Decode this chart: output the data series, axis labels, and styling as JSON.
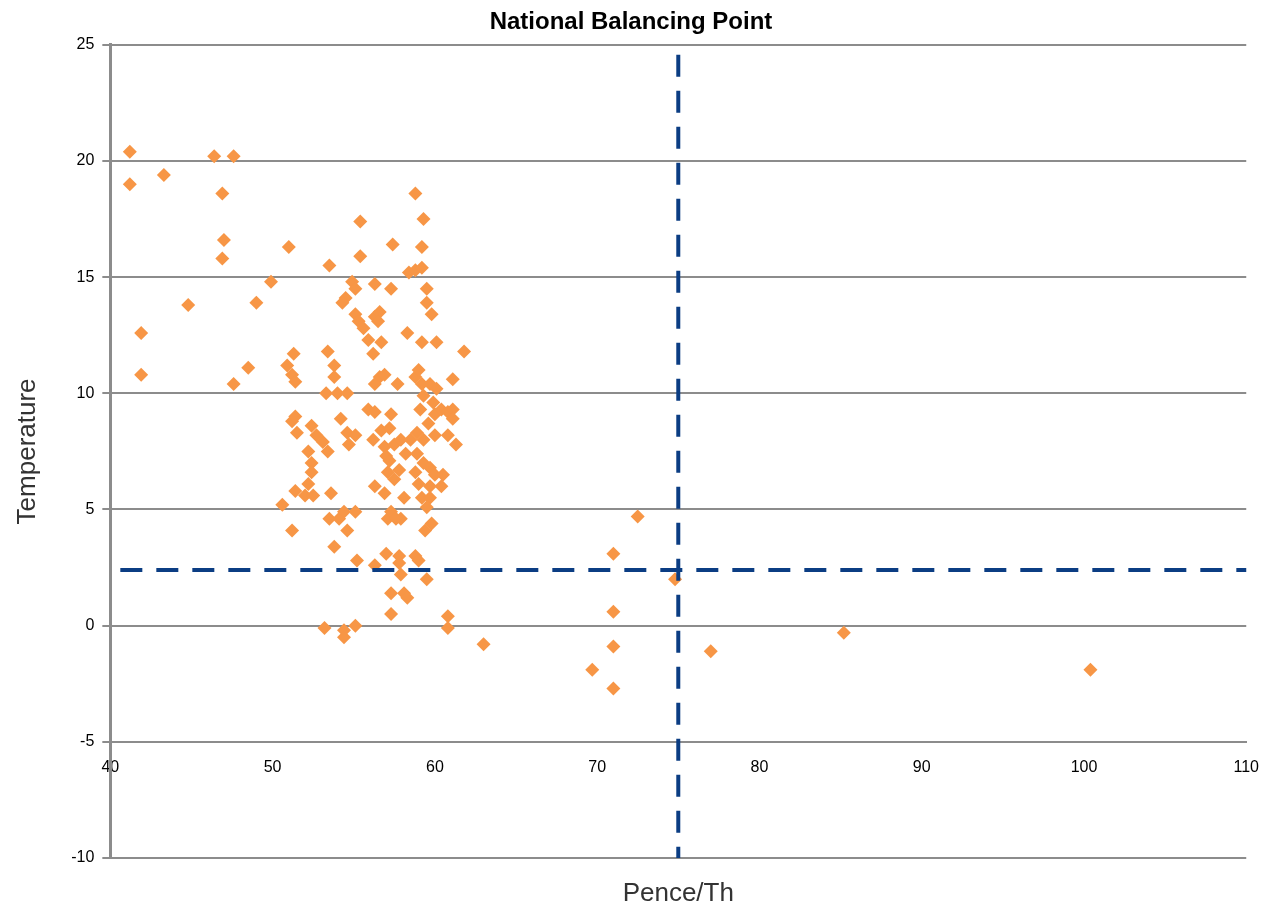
{
  "chart_data": {
    "type": "scatter",
    "title": "National Balancing Point",
    "xlabel": "Pence/Th",
    "ylabel": "Temperature",
    "xlim": [
      40,
      110
    ],
    "xticks": [
      40,
      50,
      60,
      70,
      80,
      90,
      100,
      110
    ],
    "ylim": [
      -10,
      25
    ],
    "yticks": [
      -10,
      -5,
      0,
      5,
      10,
      15,
      20,
      25
    ],
    "grid": "y",
    "legend": false,
    "marker": "diamond",
    "ref_lines": [
      {
        "axis": "x",
        "value": 75,
        "color": "#0b3d83",
        "line_style": "dashed"
      },
      {
        "axis": "y",
        "value": 2.4,
        "color": "#0b3d83",
        "line_style": "dashed"
      }
    ],
    "series": [
      {
        "color": "#f79646",
        "x": [
          41.2,
          41.2,
          43.3,
          46.4,
          47.6,
          46.9,
          47.0,
          46.9,
          44.8,
          41.9,
          41.9,
          47.6,
          48.5,
          49.0,
          49.9,
          51.0,
          50.9,
          51.3,
          51.2,
          51.4,
          51.2,
          51.4,
          51.5,
          50.6,
          51.4,
          51.2,
          53.5,
          53.4,
          53.8,
          53.8,
          53.3,
          54.0,
          54.6,
          54.2,
          52.4,
          52.7,
          53.1,
          53.4,
          52.2,
          52.4,
          52.4,
          52.2,
          52.0,
          52.5,
          53.6,
          53.5,
          53.8,
          54.1,
          54.6,
          54.4,
          55.1,
          54.6,
          54.7,
          55.1,
          53.2,
          54.4,
          54.4,
          55.1,
          55.2,
          55.4,
          55.4,
          54.9,
          55.1,
          54.5,
          54.3,
          55.1,
          55.3,
          55.6,
          55.9,
          56.3,
          56.3,
          56.6,
          56.5,
          56.7,
          56.2,
          56.6,
          56.9,
          56.3,
          55.9,
          56.3,
          56.2,
          56.7,
          56.9,
          57.0,
          57.2,
          57.3,
          57.2,
          57.5,
          57.5,
          57.1,
          56.3,
          56.9,
          56.3,
          57.1,
          57.3,
          57.0,
          57.3,
          57.3,
          57.4,
          57.3,
          57.7,
          57.9,
          58.2,
          57.8,
          58.1,
          57.9,
          57.6,
          57.8,
          57.8,
          57.9,
          58.1,
          58.3,
          58.3,
          58.4,
          58.8,
          58.8,
          59.3,
          59.2,
          59.2,
          59.5,
          59.5,
          59.8,
          59.2,
          60.1,
          58.8,
          59.0,
          59.2,
          59.7,
          60.1,
          59.3,
          59.1,
          59.9,
          60.0,
          59.6,
          58.9,
          58.5,
          59.3,
          60.4,
          60.8,
          61.1,
          61.1,
          60.8,
          61.3,
          60.0,
          61.1,
          61.8,
          58.9,
          59.3,
          58.8,
          59.0,
          59.2,
          59.7,
          60.0,
          60.5,
          60.4,
          59.7,
          59.7,
          59.5,
          59.8,
          59.4,
          58.8,
          59.0,
          59.5,
          60.8,
          60.8,
          63.0,
          69.7,
          71.0,
          71.0,
          71.0,
          71.0,
          72.5,
          74.8,
          77.0,
          85.2,
          100.4
        ],
        "values": [
          20.4,
          19.0,
          19.4,
          20.2,
          20.2,
          18.6,
          16.6,
          15.8,
          13.8,
          12.6,
          10.8,
          10.4,
          11.1,
          13.9,
          14.8,
          16.3,
          11.2,
          11.7,
          10.8,
          10.5,
          8.8,
          9.0,
          8.3,
          5.2,
          5.8,
          4.1,
          15.5,
          11.8,
          11.2,
          10.7,
          10.0,
          10.0,
          10.0,
          8.9,
          8.6,
          8.2,
          7.9,
          7.5,
          7.5,
          7.0,
          6.6,
          6.1,
          5.6,
          5.6,
          5.7,
          4.6,
          3.4,
          4.6,
          4.1,
          4.9,
          4.9,
          8.3,
          7.8,
          8.2,
          -0.1,
          -0.2,
          -0.5,
          0.0,
          2.8,
          17.4,
          15.9,
          14.8,
          14.5,
          14.1,
          13.9,
          13.4,
          13.1,
          12.8,
          12.3,
          14.7,
          13.3,
          13.5,
          13.1,
          12.2,
          11.7,
          10.7,
          10.8,
          10.4,
          9.3,
          9.2,
          8.0,
          8.4,
          7.7,
          7.3,
          7.1,
          9.1,
          8.5,
          7.8,
          6.3,
          6.6,
          6.0,
          5.7,
          2.6,
          4.6,
          4.9,
          3.1,
          1.4,
          0.5,
          16.4,
          14.5,
          10.4,
          8.0,
          7.4,
          6.7,
          5.5,
          4.6,
          4.6,
          3.0,
          2.7,
          2.2,
          1.4,
          1.2,
          12.6,
          15.2,
          15.3,
          18.6,
          17.5,
          16.3,
          15.4,
          14.5,
          13.9,
          13.4,
          12.2,
          12.2,
          10.7,
          11.0,
          10.4,
          10.4,
          10.2,
          9.9,
          9.3,
          9.6,
          9.1,
          8.7,
          8.3,
          8.0,
          8.0,
          9.3,
          9.2,
          9.3,
          8.9,
          8.2,
          7.8,
          8.2,
          10.6,
          11.8,
          7.4,
          7.0,
          6.6,
          6.1,
          5.5,
          6.8,
          6.5,
          6.5,
          6.0,
          6.0,
          5.5,
          5.1,
          4.4,
          4.1,
          3.0,
          2.8,
          2.0,
          0.4,
          -0.1,
          -0.8,
          -1.9,
          3.1,
          0.6,
          -0.9,
          -2.7,
          4.7,
          2.0,
          -1.1,
          -0.3,
          -1.9
        ]
      }
    ]
  }
}
